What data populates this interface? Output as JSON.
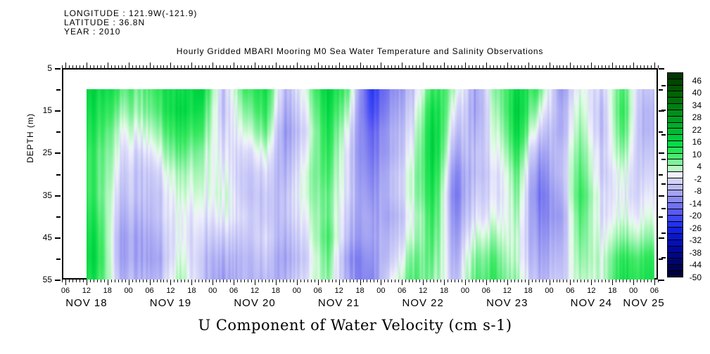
{
  "header": {
    "line1": "LONGITUDE : 121.9W(-121.9)",
    "line2": "LATITUDE : 36.8N",
    "line3": "YEAR : 2010"
  },
  "title": "Hourly Gridded MBARI Mooring M0 Sea Water Temperature and Salinity Observations",
  "x_label_bottom": "U Component of Water Velocity (cm s-1)",
  "axes": {
    "y_title": "DEPTH (m)",
    "y_tick_labels": [
      "5",
      "15",
      "25",
      "35",
      "45",
      "55"
    ],
    "y_minor_ticks_m": [
      10,
      20,
      30,
      40,
      50
    ],
    "x_hour_labels": [
      "06",
      "12",
      "18",
      "00",
      "06",
      "12",
      "18",
      "00",
      "06",
      "12",
      "18",
      "00",
      "06",
      "12",
      "18",
      "00",
      "06",
      "12",
      "18",
      "00",
      "06",
      "12",
      "18",
      "00",
      "06",
      "12",
      "18",
      "00",
      "06"
    ],
    "x_day_labels": [
      "NOV 18",
      "NOV 19",
      "NOV 20",
      "NOV 21",
      "NOV 22",
      "NOV 23",
      "NOV 24",
      "NOV 25"
    ]
  },
  "colorbar": {
    "tick_labels": [
      46,
      40,
      34,
      28,
      22,
      16,
      10,
      4,
      -2,
      -8,
      -14,
      -20,
      -26,
      -32,
      -38,
      -44,
      -50
    ],
    "min": -50,
    "max": 50,
    "segments": 33,
    "left_dash_values": [
      44,
      32,
      20,
      8,
      -4,
      -16,
      -28,
      -40
    ]
  },
  "palette": [
    [
      50,
      "#002f00"
    ],
    [
      40,
      "#006000"
    ],
    [
      30,
      "#00901c"
    ],
    [
      22,
      "#00b530"
    ],
    [
      16,
      "#00d844"
    ],
    [
      10,
      "#39e960"
    ],
    [
      6,
      "#80f19c"
    ],
    [
      3,
      "#bcf8c6"
    ],
    [
      1,
      "#e4fce8"
    ],
    [
      0,
      "#f0f0fc"
    ],
    [
      -2,
      "#dadafa"
    ],
    [
      -6,
      "#bcbcf6"
    ],
    [
      -10,
      "#9c9cf2"
    ],
    [
      -14,
      "#7b7bf0"
    ],
    [
      -18,
      "#5a5af4"
    ],
    [
      -22,
      "#3342f4"
    ],
    [
      -26,
      "#1526e8"
    ],
    [
      -30,
      "#0b17cc"
    ],
    [
      -36,
      "#0009a0"
    ],
    [
      -42,
      "#000570"
    ],
    [
      -50,
      "#000030"
    ]
  ],
  "chart_data": {
    "type": "heatmap",
    "title": "Hourly Gridded MBARI Mooring M0 Sea Water Temperature and Salinity Observations",
    "xlabel": "U Component of Water Velocity (cm s-1)",
    "ylabel": "DEPTH (m)",
    "units": "cm s-1",
    "x_axis": {
      "start": "2010-11-18 05:00",
      "end": "2010-11-25 07:00",
      "major_tick_hours": 6,
      "minor_tick_hours": 1
    },
    "y_axis": {
      "min_m": 5,
      "max_m": 55,
      "inverted": true
    },
    "color_range": [
      -50,
      50
    ],
    "legend_position": "right-colorbar",
    "grid": {
      "time_start": "2010-11-18 12:00",
      "time_step_hours": 6,
      "depths_m": [
        10,
        15,
        20,
        25,
        30,
        35,
        40,
        45,
        50,
        55
      ],
      "values_cm_s": [
        [
          16,
          14,
          12,
          10,
          10,
          10,
          12,
          14,
          15,
          13
        ],
        [
          10,
          6,
          2,
          0,
          -2,
          -4,
          -6,
          -8,
          -8,
          -6
        ],
        [
          6,
          4,
          0,
          -4,
          -6,
          -6,
          -8,
          -10,
          -10,
          -8
        ],
        [
          12,
          10,
          6,
          2,
          -2,
          -4,
          -4,
          -6,
          -8,
          -6
        ],
        [
          14,
          16,
          12,
          8,
          4,
          2,
          0,
          0,
          2,
          4
        ],
        [
          16,
          12,
          8,
          4,
          2,
          0,
          -2,
          -4,
          -6,
          -6
        ],
        [
          -6,
          -6,
          -4,
          -2,
          0,
          2,
          0,
          -4,
          -8,
          -10
        ],
        [
          8,
          4,
          0,
          -4,
          -6,
          -6,
          -4,
          -6,
          -8,
          -8
        ],
        [
          14,
          12,
          8,
          2,
          -2,
          -4,
          -4,
          -2,
          -4,
          -6
        ],
        [
          -8,
          -10,
          -12,
          -10,
          -8,
          -6,
          -6,
          -8,
          -10,
          -8
        ],
        [
          4,
          2,
          0,
          2,
          4,
          4,
          2,
          0,
          -2,
          0
        ],
        [
          18,
          16,
          14,
          12,
          10,
          8,
          8,
          10,
          8,
          6
        ],
        [
          6,
          2,
          -2,
          -4,
          -4,
          -4,
          -6,
          -8,
          -12,
          -10
        ],
        [
          -24,
          -22,
          -18,
          -16,
          -14,
          -12,
          -10,
          -10,
          -12,
          -14
        ],
        [
          -12,
          -10,
          -8,
          -8,
          -6,
          -6,
          -8,
          -6,
          -4,
          0
        ],
        [
          -6,
          -4,
          -2,
          0,
          2,
          2,
          0,
          2,
          6,
          8
        ],
        [
          12,
          16,
          18,
          18,
          16,
          14,
          12,
          10,
          8,
          6
        ],
        [
          4,
          0,
          -4,
          -8,
          -12,
          -14,
          -12,
          -10,
          -8,
          -6
        ],
        [
          -10,
          -10,
          -8,
          -6,
          -6,
          -4,
          -2,
          2,
          6,
          8
        ],
        [
          6,
          4,
          2,
          0,
          -2,
          -2,
          0,
          4,
          8,
          10
        ],
        [
          16,
          18,
          16,
          12,
          8,
          6,
          4,
          2,
          2,
          4
        ],
        [
          8,
          2,
          -4,
          -10,
          -14,
          -16,
          -14,
          -12,
          -10,
          -8
        ],
        [
          -10,
          -8,
          -8,
          -6,
          -6,
          -8,
          -10,
          -8,
          -6,
          -4
        ],
        [
          2,
          4,
          6,
          8,
          10,
          12,
          10,
          8,
          6,
          4
        ],
        [
          -4,
          -6,
          -6,
          -4,
          -4,
          -2,
          -2,
          0,
          2,
          2
        ],
        [
          10,
          12,
          10,
          6,
          2,
          0,
          2,
          6,
          12,
          14
        ],
        [
          -6,
          -8,
          -8,
          -6,
          -4,
          -2,
          0,
          4,
          10,
          12
        ]
      ]
    }
  }
}
